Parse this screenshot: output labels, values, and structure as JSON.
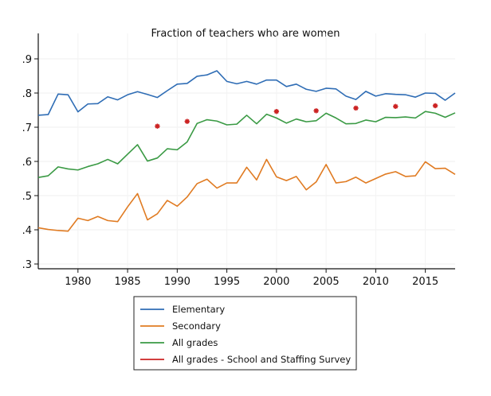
{
  "chart_data": {
    "type": "line",
    "title": "Fraction of teachers who are women",
    "xlabel": "",
    "ylabel": "",
    "xlim": [
      1976,
      2018
    ],
    "ylim": [
      0.3,
      0.95
    ],
    "x_ticks": [
      1980,
      1985,
      1990,
      1995,
      2000,
      2005,
      2010,
      2015
    ],
    "x_tick_labels": [
      "1980",
      "1985",
      "1990",
      "1995",
      "2000",
      "2005",
      "2010",
      "2015"
    ],
    "y_ticks": [
      0.3,
      0.4,
      0.5,
      0.6,
      0.7,
      0.8,
      0.9
    ],
    "y_tick_labels": [
      ".3",
      ".4",
      ".5",
      ".6",
      ".7",
      ".8",
      ".9"
    ],
    "grid": "horizontal, faint",
    "legend_position": "below plot",
    "series": [
      {
        "name": "Elementary",
        "color": "#2f6db5",
        "marker": "line",
        "x": [
          1976,
          1977,
          1978,
          1979,
          1980,
          1981,
          1982,
          1983,
          1984,
          1985,
          1986,
          1987,
          1988,
          1989,
          1990,
          1991,
          1992,
          1993,
          1994,
          1995,
          1996,
          1997,
          1998,
          1999,
          2000,
          2001,
          2002,
          2003,
          2004,
          2005,
          2006,
          2007,
          2008,
          2009,
          2010,
          2011,
          2012,
          2013,
          2014,
          2015,
          2016,
          2017,
          2018
        ],
        "values": [
          0.735,
          0.737,
          0.797,
          0.795,
          0.745,
          0.768,
          0.769,
          0.789,
          0.78,
          0.795,
          0.804,
          0.796,
          0.787,
          0.807,
          0.826,
          0.828,
          0.849,
          0.853,
          0.865,
          0.834,
          0.827,
          0.834,
          0.826,
          0.838,
          0.838,
          0.819,
          0.826,
          0.811,
          0.805,
          0.814,
          0.812,
          0.791,
          0.781,
          0.805,
          0.791,
          0.798,
          0.796,
          0.795,
          0.788,
          0.8,
          0.799,
          0.779,
          0.8
        ]
      },
      {
        "name": "Secondary",
        "color": "#e07b22",
        "marker": "line",
        "x": [
          1976,
          1977,
          1978,
          1979,
          1980,
          1981,
          1982,
          1983,
          1984,
          1985,
          1986,
          1987,
          1988,
          1989,
          1990,
          1991,
          1992,
          1993,
          1994,
          1995,
          1996,
          1997,
          1998,
          1999,
          2000,
          2001,
          2002,
          2003,
          2004,
          2005,
          2006,
          2007,
          2008,
          2009,
          2010,
          2011,
          2012,
          2013,
          2014,
          2015,
          2016,
          2017,
          2018
        ],
        "values": [
          0.406,
          0.401,
          0.398,
          0.396,
          0.434,
          0.427,
          0.439,
          0.427,
          0.424,
          0.467,
          0.506,
          0.429,
          0.447,
          0.486,
          0.469,
          0.496,
          0.535,
          0.548,
          0.522,
          0.537,
          0.537,
          0.583,
          0.546,
          0.606,
          0.555,
          0.544,
          0.556,
          0.517,
          0.54,
          0.591,
          0.537,
          0.541,
          0.554,
          0.537,
          0.55,
          0.563,
          0.57,
          0.556,
          0.558,
          0.599,
          0.579,
          0.58,
          0.562
        ]
      },
      {
        "name": "All grades",
        "color": "#3a9a44",
        "marker": "line",
        "x": [
          1976,
          1977,
          1978,
          1979,
          1980,
          1981,
          1982,
          1983,
          1984,
          1985,
          1986,
          1987,
          1988,
          1989,
          1990,
          1991,
          1992,
          1993,
          1994,
          1995,
          1996,
          1997,
          1998,
          1999,
          2000,
          2001,
          2002,
          2003,
          2004,
          2005,
          2006,
          2007,
          2008,
          2009,
          2010,
          2011,
          2012,
          2013,
          2014,
          2015,
          2016,
          2017,
          2018
        ],
        "values": [
          0.553,
          0.558,
          0.584,
          0.578,
          0.575,
          0.585,
          0.593,
          0.606,
          0.593,
          0.621,
          0.649,
          0.601,
          0.61,
          0.637,
          0.634,
          0.657,
          0.711,
          0.722,
          0.718,
          0.707,
          0.709,
          0.735,
          0.71,
          0.738,
          0.727,
          0.712,
          0.724,
          0.716,
          0.719,
          0.741,
          0.727,
          0.71,
          0.711,
          0.721,
          0.716,
          0.729,
          0.728,
          0.73,
          0.727,
          0.746,
          0.741,
          0.729,
          0.742
        ]
      },
      {
        "name": "All grades - School and Staffing Survey",
        "color": "#cc2222",
        "marker": "star",
        "x": [
          1988,
          1991,
          2000,
          2004,
          2008,
          2012,
          2016
        ],
        "values": [
          0.703,
          0.717,
          0.746,
          0.748,
          0.756,
          0.761,
          0.763
        ]
      }
    ]
  }
}
